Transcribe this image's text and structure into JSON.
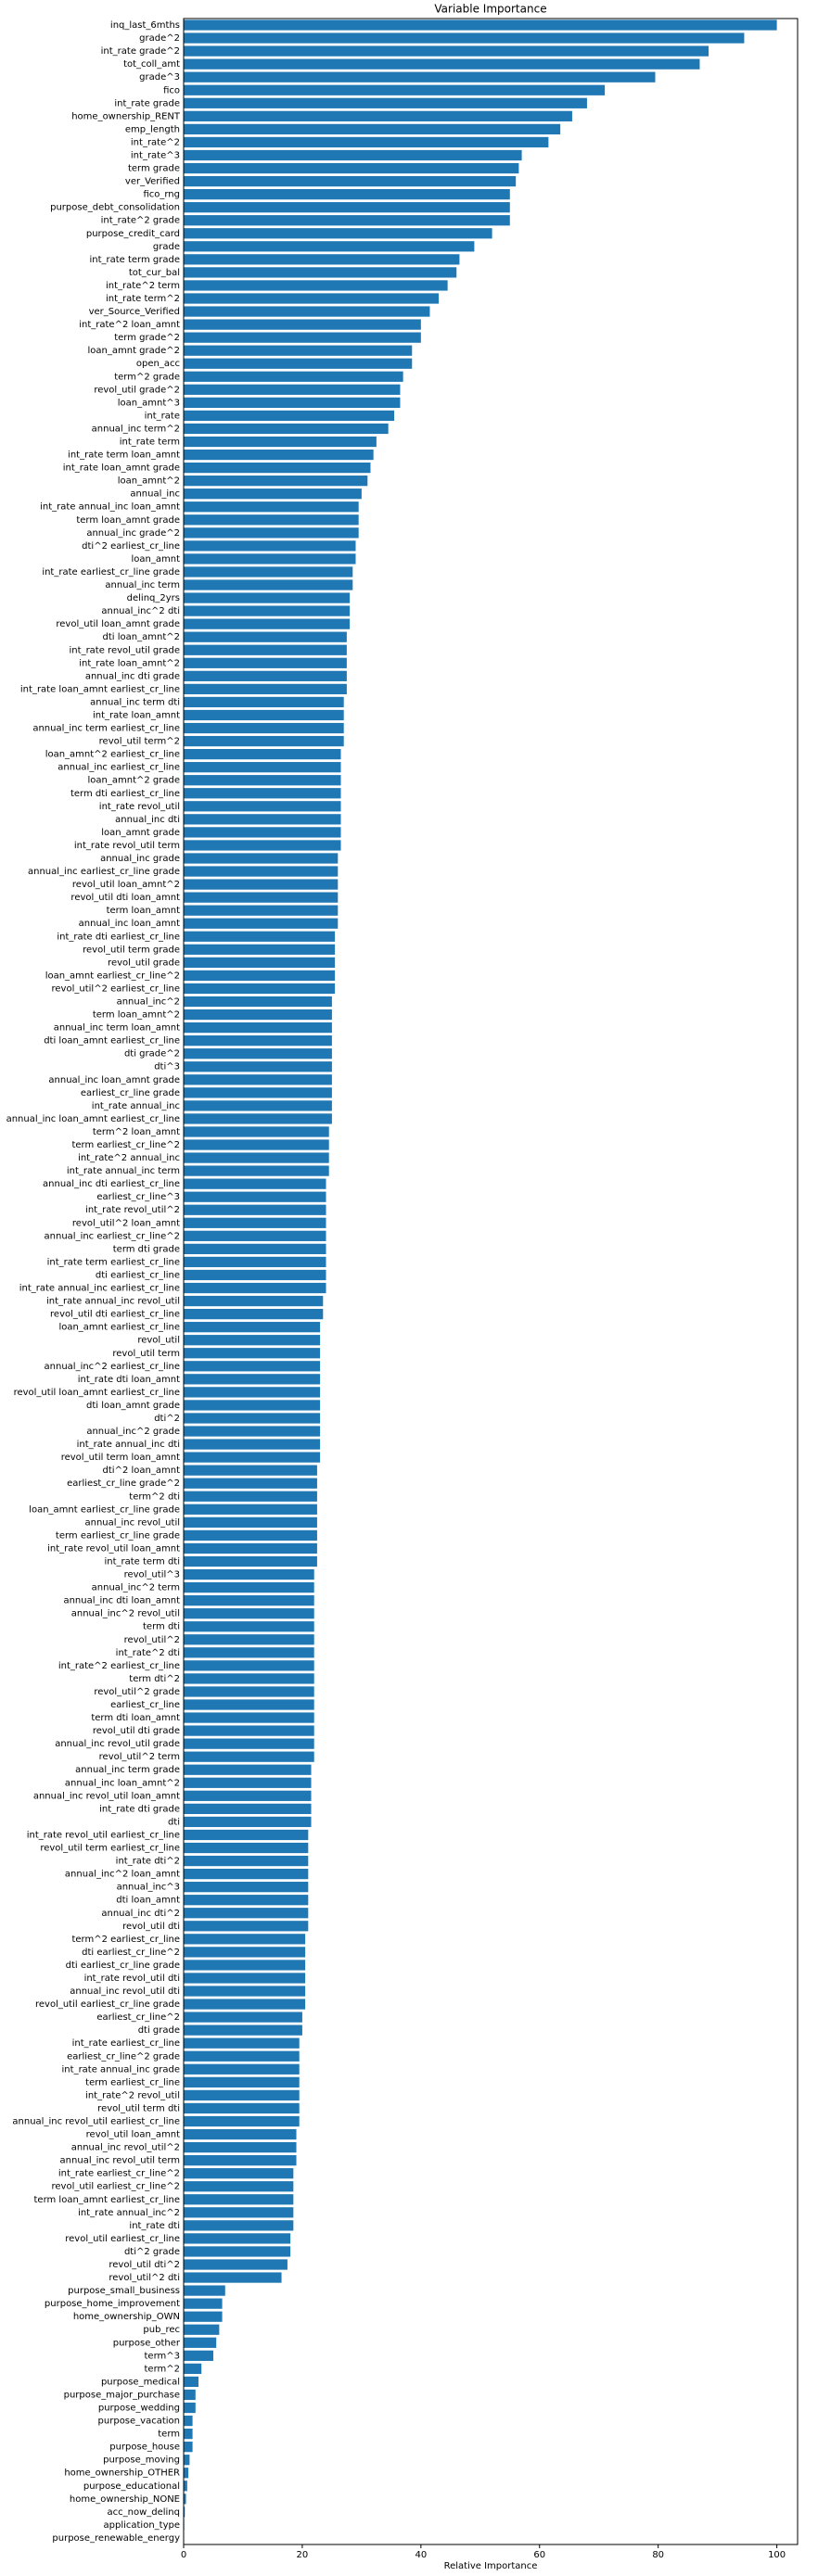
{
  "chart_data": {
    "type": "bar",
    "orientation": "horizontal",
    "title": "Variable Importance",
    "xlabel": "Relative Importance",
    "color": "#1f77b4",
    "xlim": [
      0,
      103.5
    ],
    "xticks": [
      0,
      20,
      40,
      60,
      80,
      100
    ],
    "categories": [
      "inq_last_6mths",
      "grade^2",
      "int_rate grade^2",
      "tot_coll_amt",
      "grade^3",
      "fico",
      "int_rate grade",
      "home_ownership_RENT",
      "emp_length",
      "int_rate^2",
      "int_rate^3",
      "term grade",
      "ver_Verified",
      "fico_rng",
      "purpose_debt_consolidation",
      "int_rate^2 grade",
      "purpose_credit_card",
      "grade",
      "int_rate term grade",
      "tot_cur_bal",
      "int_rate^2 term",
      "int_rate term^2",
      "ver_Source_Verified",
      "int_rate^2 loan_amnt",
      "term grade^2",
      "loan_amnt grade^2",
      "open_acc",
      "term^2 grade",
      "revol_util grade^2",
      "loan_amnt^3",
      "int_rate",
      "annual_inc term^2",
      "int_rate term",
      "int_rate term loan_amnt",
      "int_rate loan_amnt grade",
      "loan_amnt^2",
      "annual_inc",
      "int_rate annual_inc loan_amnt",
      "term loan_amnt grade",
      "annual_inc grade^2",
      "dti^2 earliest_cr_line",
      "loan_amnt",
      "int_rate earliest_cr_line grade",
      "annual_inc term",
      "delinq_2yrs",
      "annual_inc^2 dti",
      "revol_util loan_amnt grade",
      "dti loan_amnt^2",
      "int_rate revol_util grade",
      "int_rate loan_amnt^2",
      "annual_inc dti grade",
      "int_rate loan_amnt earliest_cr_line",
      "annual_inc term dti",
      "int_rate loan_amnt",
      "annual_inc term earliest_cr_line",
      "revol_util term^2",
      "loan_amnt^2 earliest_cr_line",
      "annual_inc earliest_cr_line",
      "loan_amnt^2 grade",
      "term dti earliest_cr_line",
      "int_rate revol_util",
      "annual_inc dti",
      "loan_amnt grade",
      "int_rate revol_util term",
      "annual_inc grade",
      "annual_inc earliest_cr_line grade",
      "revol_util loan_amnt^2",
      "revol_util dti loan_amnt",
      "term loan_amnt",
      "annual_inc loan_amnt",
      "int_rate dti earliest_cr_line",
      "revol_util term grade",
      "revol_util grade",
      "loan_amnt earliest_cr_line^2",
      "revol_util^2 earliest_cr_line",
      "annual_inc^2",
      "term loan_amnt^2",
      "annual_inc term loan_amnt",
      "dti loan_amnt earliest_cr_line",
      "dti grade^2",
      "dti^3",
      "annual_inc loan_amnt grade",
      "earliest_cr_line grade",
      "int_rate annual_inc",
      "annual_inc loan_amnt earliest_cr_line",
      "term^2 loan_amnt",
      "term earliest_cr_line^2",
      "int_rate^2 annual_inc",
      "int_rate annual_inc term",
      "annual_inc dti earliest_cr_line",
      "earliest_cr_line^3",
      "int_rate revol_util^2",
      "revol_util^2 loan_amnt",
      "annual_inc earliest_cr_line^2",
      "term dti grade",
      "int_rate term earliest_cr_line",
      "dti earliest_cr_line",
      "int_rate annual_inc earliest_cr_line",
      "int_rate annual_inc revol_util",
      "revol_util dti earliest_cr_line",
      "loan_amnt earliest_cr_line",
      "revol_util",
      "revol_util term",
      "annual_inc^2 earliest_cr_line",
      "int_rate dti loan_amnt",
      "revol_util loan_amnt earliest_cr_line",
      "dti loan_amnt grade",
      "dti^2",
      "annual_inc^2 grade",
      "int_rate annual_inc dti",
      "revol_util term loan_amnt",
      "dti^2 loan_amnt",
      "earliest_cr_line grade^2",
      "term^2 dti",
      "loan_amnt earliest_cr_line grade",
      "annual_inc revol_util",
      "term earliest_cr_line grade",
      "int_rate revol_util loan_amnt",
      "int_rate term dti",
      "revol_util^3",
      "annual_inc^2 term",
      "annual_inc dti loan_amnt",
      "annual_inc^2 revol_util",
      "term dti",
      "revol_util^2",
      "int_rate^2 dti",
      "int_rate^2 earliest_cr_line",
      "term dti^2",
      "revol_util^2 grade",
      "earliest_cr_line",
      "term dti loan_amnt",
      "revol_util dti grade",
      "annual_inc revol_util grade",
      "revol_util^2 term",
      "annual_inc term grade",
      "annual_inc loan_amnt^2",
      "annual_inc revol_util loan_amnt",
      "int_rate dti grade",
      "dti",
      "int_rate revol_util earliest_cr_line",
      "revol_util term earliest_cr_line",
      "int_rate dti^2",
      "annual_inc^2 loan_amnt",
      "annual_inc^3",
      "dti loan_amnt",
      "annual_inc dti^2",
      "revol_util dti",
      "term^2 earliest_cr_line",
      "dti earliest_cr_line^2",
      "dti earliest_cr_line grade",
      "int_rate revol_util dti",
      "annual_inc revol_util dti",
      "revol_util earliest_cr_line grade",
      "earliest_cr_line^2",
      "dti grade",
      "int_rate earliest_cr_line",
      "earliest_cr_line^2 grade",
      "int_rate annual_inc grade",
      "term earliest_cr_line",
      "int_rate^2 revol_util",
      "revol_util term dti",
      "annual_inc revol_util earliest_cr_line",
      "revol_util loan_amnt",
      "annual_inc revol_util^2",
      "annual_inc revol_util term",
      "int_rate earliest_cr_line^2",
      "revol_util earliest_cr_line^2",
      "term loan_amnt earliest_cr_line",
      "int_rate annual_inc^2",
      "int_rate dti",
      "revol_util earliest_cr_line",
      "dti^2 grade",
      "revol_util dti^2",
      "revol_util^2 dti",
      "purpose_small_business",
      "purpose_home_improvement",
      "home_ownership_OWN",
      "pub_rec",
      "purpose_other",
      "term^3",
      "term^2",
      "purpose_medical",
      "purpose_major_purchase",
      "purpose_wedding",
      "purpose_vacation",
      "term",
      "purpose_house",
      "purpose_moving",
      "home_ownership_OTHER",
      "purpose_educational",
      "home_ownership_NONE",
      "acc_now_delinq",
      "application_type",
      "purpose_renewable_energy"
    ],
    "values": [
      100,
      94.5,
      88.5,
      87,
      79.5,
      71,
      68,
      65.5,
      63.5,
      61.5,
      57,
      56.5,
      56,
      55,
      55,
      55,
      52,
      49,
      46.5,
      46,
      44.5,
      43,
      41.5,
      40,
      40,
      38.5,
      38.5,
      37,
      36.5,
      36.5,
      35.5,
      34.5,
      32.5,
      32,
      31.5,
      31,
      30,
      29.5,
      29.5,
      29.5,
      29,
      29,
      28.5,
      28.5,
      28,
      28,
      28,
      27.5,
      27.5,
      27.5,
      27.5,
      27.5,
      27,
      27,
      27,
      27,
      26.5,
      26.5,
      26.5,
      26.5,
      26.5,
      26.5,
      26.5,
      26.5,
      26,
      26,
      26,
      26,
      26,
      26,
      25.5,
      25.5,
      25.5,
      25.5,
      25.5,
      25,
      25,
      25,
      25,
      25,
      25,
      25,
      25,
      25,
      25,
      24.5,
      24.5,
      24.5,
      24.5,
      24,
      24,
      24,
      24,
      24,
      24,
      24,
      24,
      24,
      23.5,
      23.5,
      23,
      23,
      23,
      23,
      23,
      23,
      23,
      23,
      23,
      23,
      23,
      22.5,
      22.5,
      22.5,
      22.5,
      22.5,
      22.5,
      22.5,
      22.5,
      22,
      22,
      22,
      22,
      22,
      22,
      22,
      22,
      22,
      22,
      22,
      22,
      22,
      22,
      22,
      21.5,
      21.5,
      21.5,
      21.5,
      21.5,
      21,
      21,
      21,
      21,
      21,
      21,
      21,
      21,
      20.5,
      20.5,
      20.5,
      20.5,
      20.5,
      20.5,
      20,
      20,
      19.5,
      19.5,
      19.5,
      19.5,
      19.5,
      19.5,
      19.5,
      19,
      19,
      19,
      18.5,
      18.5,
      18.5,
      18.5,
      18.5,
      18,
      18,
      17.5,
      16.5,
      7,
      6.5,
      6.5,
      6,
      5.5,
      5,
      3,
      2.5,
      2,
      2,
      1.5,
      1.5,
      1.5,
      1,
      0.8,
      0.6,
      0.4,
      0.2,
      0.1,
      0
    ]
  }
}
